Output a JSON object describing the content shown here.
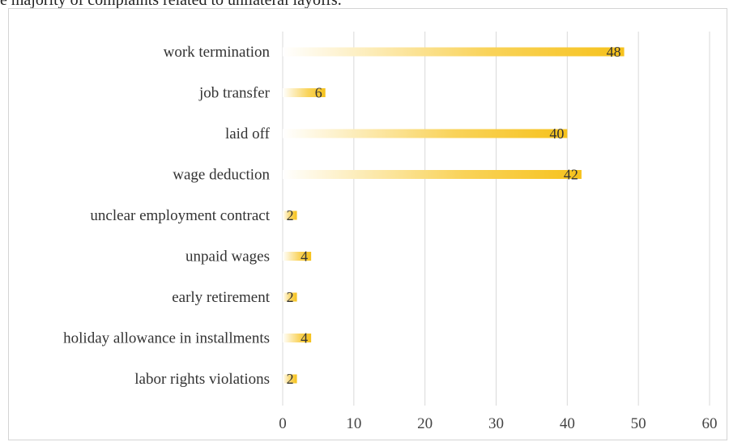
{
  "caption": "e majority of complaints related to unilateral layoffs.",
  "chart_data": {
    "type": "bar",
    "orientation": "horizontal",
    "categories": [
      "work termination",
      "job transfer",
      "laid off",
      "wage deduction",
      "unclear employment contract",
      "unpaid wages",
      "early retirement",
      "holiday allowance in installments",
      "labor rights violations"
    ],
    "values": [
      48,
      6,
      40,
      42,
      2,
      4,
      2,
      4,
      2
    ],
    "xlim": [
      0,
      60
    ],
    "xticks": [
      "0",
      "10",
      "20",
      "30",
      "40",
      "50",
      "60"
    ],
    "grid": "vertical",
    "bar_color": "#f6c21c",
    "bar_gradient_start": "#ffffff",
    "legend": "none",
    "data_labels": true
  }
}
